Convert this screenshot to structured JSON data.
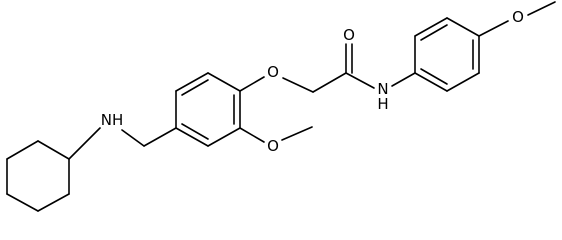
{
  "atoms": {
    "amine": "NH",
    "ether_o": "O",
    "methoxy_o": "O",
    "carbonyl_o": "O",
    "amide_n": "N",
    "amide_h": "H",
    "para_methoxy_o": "O"
  }
}
